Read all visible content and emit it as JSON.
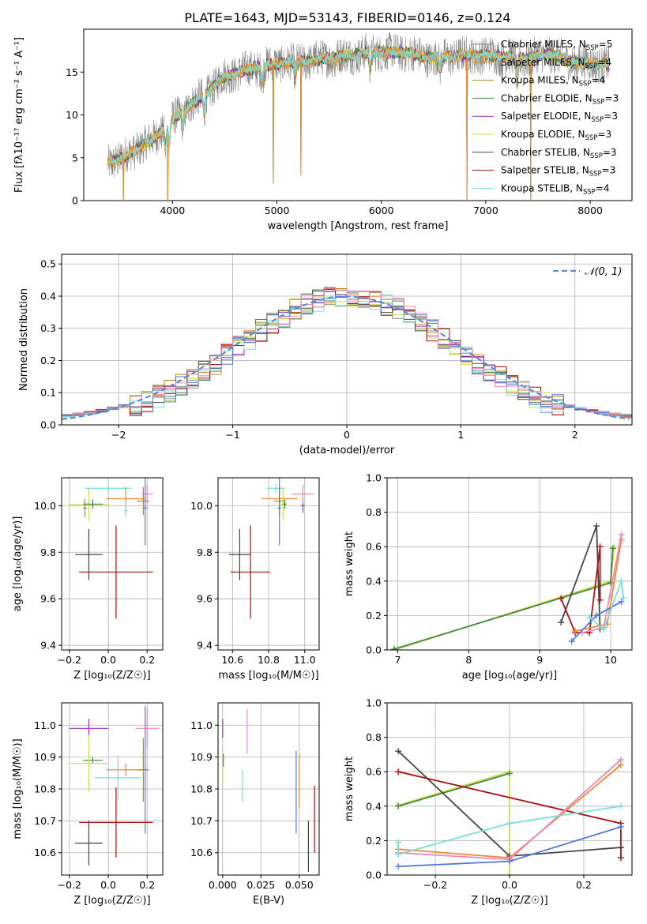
{
  "figure_title": "PLATE=1643, MJD=53143, FIBERID=0146, z=0.124",
  "colors": {
    "Chabrier MILES": "#888888",
    "Salpeter MILES": "#ee8833",
    "Kroupa MILES": "#aa8811",
    "Chabrier ELODIE": "#448844",
    "Salpeter ELODIE": "#9933bb",
    "Kroupa ELODIE": "#ccdd44",
    "Chabrier STELIB": "#444444",
    "Salpeter STELIB": "#aa1111",
    "Kroupa STELIB": "#77dddd",
    "extra_blue": "#5577dd",
    "extra_pink": "#ee88bb",
    "normal_curve": "#5b8bd6",
    "grid": "#b0b0b0"
  },
  "chart_data": [
    {
      "id": "spectrum",
      "type": "line",
      "title": "PLATE=1643, MJD=53143, FIBERID=0146, z=0.124",
      "xlabel": "wavelength [Angstrom, rest frame]",
      "ylabel": "Flux [fλ10⁻¹⁷ erg cm⁻² s⁻¹ A⁻¹]",
      "xlim": [
        3150,
        8400
      ],
      "ylim": [
        0,
        20
      ],
      "xticks": [
        "4000",
        "5000",
        "6000",
        "7000",
        "8000"
      ],
      "yticks": [
        "0",
        "5",
        "10",
        "15"
      ],
      "grid": false,
      "legend_position": "upper-right",
      "legend": [
        {
          "base": "Chabrier MILES, N",
          "sub": "SSP",
          "tail": "=5"
        },
        {
          "base": "Salpeter MILES, N",
          "sub": "SSP",
          "tail": "=4"
        },
        {
          "base": "Kroupa MILES, N",
          "sub": "SSP",
          "tail": "=4"
        },
        {
          "base": "Chabrier ELODIE, N",
          "sub": "SSP",
          "tail": "=3"
        },
        {
          "base": "Salpeter ELODIE, N",
          "sub": "SSP",
          "tail": "=3"
        },
        {
          "base": "Kroupa ELODIE, N",
          "sub": "SSP",
          "tail": "=3"
        },
        {
          "base": "Chabrier STELIB, N",
          "sub": "SSP",
          "tail": "=3"
        },
        {
          "base": "Salpeter STELIB, N",
          "sub": "SSP",
          "tail": "=3"
        },
        {
          "base": "Kroupa STELIB, N",
          "sub": "SSP",
          "tail": "=4"
        }
      ],
      "continuum": [
        [
          3380,
          4.5
        ],
        [
          3500,
          4.8
        ],
        [
          3650,
          6.0
        ],
        [
          3800,
          7.0
        ],
        [
          3950,
          8.8
        ],
        [
          4100,
          10.5
        ],
        [
          4300,
          12.3
        ],
        [
          4500,
          14.5
        ],
        [
          4700,
          15.2
        ],
        [
          5000,
          16.0
        ],
        [
          5300,
          16.3
        ],
        [
          5600,
          16.8
        ],
        [
          5900,
          17.3
        ],
        [
          6200,
          17.3
        ],
        [
          6500,
          16.6
        ],
        [
          6800,
          17.0
        ],
        [
          7100,
          16.9
        ],
        [
          7400,
          16.5
        ],
        [
          7600,
          17.2
        ],
        [
          7800,
          16.2
        ],
        [
          8200,
          15.8
        ]
      ],
      "absorption_features": [
        [
          3933,
          2.5
        ],
        [
          3968,
          2.5
        ],
        [
          4101,
          1.8
        ],
        [
          4304,
          2.2
        ],
        [
          4861,
          1.8
        ],
        [
          5175,
          2.0
        ],
        [
          5893,
          1.8
        ],
        [
          6563,
          1.5
        ],
        [
          7300,
          3.0
        ]
      ],
      "spikes": [
        [
          4965,
          2.0
        ],
        [
          5230,
          3.0
        ],
        [
          5555,
          14.5
        ],
        [
          6820,
          0
        ],
        [
          7430,
          0
        ],
        [
          3530,
          0
        ],
        [
          3955,
          0
        ]
      ]
    },
    {
      "id": "residuals",
      "type": "histogram",
      "xlabel": "(data-model)/error",
      "ylabel": "Normed distribution",
      "xlim": [
        -2.5,
        2.5
      ],
      "ylim": [
        0,
        0.53
      ],
      "xticks": [
        "−2",
        "−1",
        "0",
        "1",
        "2"
      ],
      "yticks": [
        "0.0",
        "0.1",
        "0.2",
        "0.3",
        "0.4",
        "0.5"
      ],
      "grid": true,
      "legend_position": "upper-right",
      "legend_label": "𝒩(0, 1)",
      "bin_width": 0.1
    },
    {
      "id": "age_vs_Z",
      "type": "scatter",
      "xlabel": "Z [log₁₀(Z/Z☉)]",
      "ylabel": "age  [log₁₀(age/yr)]",
      "xlim": [
        -0.24,
        0.28
      ],
      "ylim": [
        9.38,
        10.12
      ],
      "xticks": [
        [
          "−0.2",
          -0.2
        ],
        [
          "0.0",
          0.0
        ],
        [
          "0.2",
          0.2
        ]
      ],
      "yticks": [
        [
          "9.4",
          9.4
        ],
        [
          "9.6",
          9.6
        ],
        [
          "9.8",
          9.8
        ],
        [
          "10.0",
          10.0
        ]
      ],
      "grid": true,
      "points": [
        {
          "series": "Kroupa ELODIE",
          "x": -0.1,
          "y": 10.005,
          "xerr": 0.1,
          "yerr": 0.07
        },
        {
          "series": "Chabrier ELODIE",
          "x": -0.08,
          "y": 10.007,
          "xerr": 0.05,
          "yerr": 0.02
        },
        {
          "series": "Kroupa STELIB",
          "x": 0.0,
          "y": 10.075,
          "xerr": 0.12,
          "yerr": 0.02
        },
        {
          "series": "Salpeter MILES",
          "x": 0.09,
          "y": 10.03,
          "xerr": 0.1,
          "yerr": 0.05
        },
        {
          "series": "Kroupa MILES",
          "x": 0.18,
          "y": 10.02,
          "xerr": 0.03,
          "yerr": 0.06
        },
        {
          "series": "extra_pink",
          "x": 0.2,
          "y": 10.05,
          "xerr": 0.03,
          "yerr": 0.04
        },
        {
          "series": "extra_blue",
          "x": 0.19,
          "y": 9.99,
          "xerr": 0.01,
          "yerr": 0.16
        },
        {
          "series": "Chabrier MILES",
          "x": -0.12,
          "y": 9.99,
          "xerr": 0.01,
          "yerr": 0.04
        },
        {
          "series": "Kroupa STELIB",
          "x": 0.09,
          "y": 9.98,
          "xerr": 0.01,
          "yerr": 0.03
        },
        {
          "series": "Chabrier STELIB",
          "x": -0.1,
          "y": 9.79,
          "xerr": 0.07,
          "yerr": 0.11
        },
        {
          "series": "Salpeter STELIB",
          "x": 0.04,
          "y": 9.715,
          "xerr": 0.19,
          "yerr": 0.2
        }
      ]
    },
    {
      "id": "age_vs_mass",
      "type": "scatter",
      "xlabel": "mass [log₁₀(M/M☉)]",
      "ylabel": "",
      "xlim": [
        10.52,
        11.08
      ],
      "ylim": [
        9.38,
        10.12
      ],
      "xticks": [
        [
          "10.6",
          10.6
        ],
        [
          "10.8",
          10.8
        ],
        [
          "11.0",
          11.0
        ]
      ],
      "yticks": [
        [
          "9.4",
          9.4
        ],
        [
          "9.6",
          9.6
        ],
        [
          "9.8",
          9.8
        ],
        [
          "10.0",
          10.0
        ]
      ],
      "grid": true,
      "points": [
        {
          "series": "Chabrier STELIB",
          "x": 10.64,
          "y": 9.79,
          "xerr": 0.06,
          "yerr": 0.11
        },
        {
          "series": "Salpeter STELIB",
          "x": 10.7,
          "y": 9.715,
          "xerr": 0.11,
          "yerr": 0.2
        },
        {
          "series": "Salpeter MILES",
          "x": 10.86,
          "y": 10.03,
          "xerr": 0.1,
          "yerr": 0.05
        },
        {
          "series": "Kroupa STELIB",
          "x": 10.84,
          "y": 10.075,
          "xerr": 0.05,
          "yerr": 0.02
        },
        {
          "series": "Kroupa MILES",
          "x": 10.86,
          "y": 10.02,
          "xerr": 0.03,
          "yerr": 0.06
        },
        {
          "series": "Kroupa ELODIE",
          "x": 10.88,
          "y": 10.005,
          "xerr": 0.02,
          "yerr": 0.07
        },
        {
          "series": "extra_blue",
          "x": 10.86,
          "y": 9.99,
          "xerr": 0.01,
          "yerr": 0.16
        },
        {
          "series": "Chabrier ELODIE",
          "x": 10.89,
          "y": 10.007,
          "xerr": 0.01,
          "yerr": 0.02
        },
        {
          "series": "Salpeter ELODIE",
          "x": 10.99,
          "y": 10.0,
          "xerr": 0.01,
          "yerr": 0.03
        },
        {
          "series": "extra_pink",
          "x": 10.99,
          "y": 10.05,
          "xerr": 0.06,
          "yerr": 0.04
        }
      ]
    },
    {
      "id": "mass_weight_vs_age",
      "type": "line",
      "xlabel": "age  [log₁₀(age/yr)]",
      "ylabel": "mass weight",
      "xlim": [
        6.85,
        10.3
      ],
      "ylim": [
        0,
        1
      ],
      "xticks": [
        [
          "7",
          7
        ],
        [
          "8",
          8
        ],
        [
          "9",
          9
        ],
        [
          "10",
          10
        ]
      ],
      "yticks": [
        [
          "0.0",
          0
        ],
        [
          "0.2",
          0.2
        ],
        [
          "0.4",
          0.4
        ],
        [
          "0.6",
          0.6
        ],
        [
          "0.8",
          0.8
        ],
        [
          "1.0",
          1.0
        ]
      ],
      "grid": true,
      "series": [
        {
          "name": "Kroupa ELODIE",
          "points": [
            [
              6.95,
              0.0
            ],
            [
              10.0,
              0.4
            ],
            [
              10.05,
              0.6
            ]
          ]
        },
        {
          "name": "Chabrier ELODIE",
          "points": [
            [
              6.95,
              0.005
            ],
            [
              10.0,
              0.39
            ],
            [
              10.03,
              0.59
            ]
          ]
        },
        {
          "name": "Chabrier STELIB",
          "points": [
            [
              9.3,
              0.16
            ],
            [
              9.8,
              0.72
            ],
            [
              9.85,
              0.12
            ]
          ]
        },
        {
          "name": "Salpeter STELIB",
          "points": [
            [
              9.3,
              0.3
            ],
            [
              9.5,
              0.1
            ],
            [
              9.7,
              0.1
            ],
            [
              9.85,
              0.6
            ],
            [
              9.85,
              0.29
            ]
          ]
        },
        {
          "name": "Salpeter MILES",
          "points": [
            [
              9.5,
              0.11
            ],
            [
              9.95,
              0.15
            ],
            [
              10.15,
              0.64
            ]
          ]
        },
        {
          "name": "extra_pink",
          "points": [
            [
              9.6,
              0.1
            ],
            [
              9.9,
              0.13
            ],
            [
              10.15,
              0.67
            ]
          ]
        },
        {
          "name": "extra_blue",
          "points": [
            [
              9.45,
              0.05
            ],
            [
              9.8,
              0.2
            ],
            [
              10.15,
              0.28
            ]
          ]
        },
        {
          "name": "Kroupa STELIB",
          "points": [
            [
              9.7,
              0.19
            ],
            [
              9.9,
              0.12
            ],
            [
              10.15,
              0.4
            ],
            [
              10.18,
              0.3
            ]
          ]
        }
      ]
    },
    {
      "id": "mass_vs_Z",
      "type": "scatter",
      "xlabel": "Z [log₁₀(Z/Z☉)]",
      "ylabel": "mass [log₁₀(M/M☉)]",
      "xlim": [
        -0.24,
        0.28
      ],
      "ylim": [
        10.53,
        11.07
      ],
      "xticks": [
        [
          "−0.2",
          -0.2
        ],
        [
          "0.0",
          0.0
        ],
        [
          "0.2",
          0.2
        ]
      ],
      "yticks": [
        [
          "10.6",
          10.6
        ],
        [
          "10.7",
          10.7
        ],
        [
          "10.8",
          10.8
        ],
        [
          "10.9",
          10.9
        ],
        [
          "11.0",
          11.0
        ]
      ],
      "grid": true,
      "points": [
        {
          "series": "Salpeter ELODIE",
          "x": -0.1,
          "y": 10.99,
          "xerr": 0.1,
          "yerr": 0.03
        },
        {
          "series": "extra_pink",
          "x": 0.2,
          "y": 10.99,
          "xerr": 0.06,
          "yerr": 0.06
        },
        {
          "series": "Chabrier ELODIE",
          "x": -0.08,
          "y": 10.89,
          "xerr": 0.05,
          "yerr": 0.01
        },
        {
          "series": "Kroupa ELODIE",
          "x": -0.1,
          "y": 10.88,
          "xerr": 0.1,
          "yerr": 0.09
        },
        {
          "series": "Salpeter MILES",
          "x": 0.09,
          "y": 10.86,
          "xerr": 0.1,
          "yerr": 0.02
        },
        {
          "series": "Kroupa MILES",
          "x": 0.18,
          "y": 10.86,
          "xerr": 0.03,
          "yerr": 0.1
        },
        {
          "series": "extra_blue",
          "x": 0.19,
          "y": 10.86,
          "xerr": 0.01,
          "yerr": 0.2
        },
        {
          "series": "Kroupa STELIB",
          "x": 0.05,
          "y": 10.835,
          "xerr": 0.12,
          "yerr": 0.07
        },
        {
          "series": "Salpeter STELIB",
          "x": 0.04,
          "y": 10.695,
          "xerr": 0.19,
          "yerr": 0.11
        },
        {
          "series": "Chabrier STELIB",
          "x": -0.1,
          "y": 10.63,
          "xerr": 0.07,
          "yerr": 0.07
        }
      ]
    },
    {
      "id": "mass_vs_ebv",
      "type": "scatter",
      "xlabel": "E(B-V)",
      "ylabel": "",
      "xlim": [
        -0.003,
        0.063
      ],
      "ylim": [
        10.53,
        11.07
      ],
      "xticks": [
        [
          "0.000",
          0.0
        ],
        [
          "0.025",
          0.025
        ],
        [
          "0.050",
          0.05
        ]
      ],
      "yticks": [
        [
          "10.6",
          10.6
        ],
        [
          "10.7",
          10.7
        ],
        [
          "10.8",
          10.8
        ],
        [
          "10.9",
          10.9
        ],
        [
          "11.0",
          11.0
        ]
      ],
      "grid": true,
      "points": [
        {
          "series": "Salpeter ELODIE",
          "x": 0.0,
          "y": 10.99,
          "xerr": 0,
          "yerr": 0.03
        },
        {
          "series": "Kroupa ELODIE",
          "x": 0.0,
          "y": 10.86,
          "xerr": 0,
          "yerr": 0.07
        },
        {
          "series": "Chabrier ELODIE",
          "x": 0.0005,
          "y": 10.89,
          "xerr": 0,
          "yerr": 0.02
        },
        {
          "series": "extra_pink",
          "x": 0.016,
          "y": 10.98,
          "xerr": 0,
          "yerr": 0.07
        },
        {
          "series": "Kroupa STELIB",
          "x": 0.013,
          "y": 10.81,
          "xerr": 0,
          "yerr": 0.05
        },
        {
          "series": "extra_blue",
          "x": 0.048,
          "y": 10.79,
          "xerr": 0,
          "yerr": 0.13
        },
        {
          "series": "Salpeter MILES",
          "x": 0.05,
          "y": 10.825,
          "xerr": 0,
          "yerr": 0.085
        },
        {
          "series": "Chabrier STELIB",
          "x": 0.056,
          "y": 10.62,
          "xerr": 0,
          "yerr": 0.08
        },
        {
          "series": "Salpeter STELIB",
          "x": 0.06,
          "y": 10.705,
          "xerr": 0,
          "yerr": 0.105
        }
      ]
    },
    {
      "id": "mass_weight_vs_Z",
      "type": "line",
      "xlabel": "Z [log₁₀(Z/Z☉)]",
      "ylabel": "mass weight",
      "xlim": [
        -0.33,
        0.33
      ],
      "ylim": [
        0,
        1
      ],
      "xticks": [
        [
          "−0.2",
          -0.2
        ],
        [
          "0.0",
          0.0
        ],
        [
          "0.2",
          0.2
        ]
      ],
      "yticks": [
        [
          "0.0",
          0
        ],
        [
          "0.2",
          0.2
        ],
        [
          "0.4",
          0.4
        ],
        [
          "0.6",
          0.6
        ],
        [
          "0.8",
          0.8
        ],
        [
          "1.0",
          1.0
        ]
      ],
      "grid": true,
      "series": [
        {
          "name": "Kroupa ELODIE",
          "points": [
            [
              -0.3,
              0.405
            ],
            [
              0.0,
              0.6
            ],
            [
              0.0,
              0.0
            ]
          ]
        },
        {
          "name": "Chabrier ELODIE",
          "points": [
            [
              -0.3,
              0.4
            ],
            [
              0.0,
              0.59
            ]
          ]
        },
        {
          "name": "Chabrier STELIB",
          "points": [
            [
              -0.3,
              0.72
            ],
            [
              0.0,
              0.11
            ],
            [
              0.3,
              0.16
            ]
          ]
        },
        {
          "name": "Salpeter STELIB",
          "points": [
            [
              -0.3,
              0.6
            ],
            [
              0.3,
              0.3
            ],
            [
              0.3,
              0.1
            ]
          ]
        },
        {
          "name": "Salpeter MILES",
          "points": [
            [
              -0.3,
              0.15
            ],
            [
              0.0,
              0.1
            ],
            [
              0.3,
              0.64
            ]
          ]
        },
        {
          "name": "extra_pink",
          "points": [
            [
              -0.3,
              0.13
            ],
            [
              0.0,
              0.09
            ],
            [
              0.3,
              0.67
            ]
          ]
        },
        {
          "name": "extra_blue",
          "points": [
            [
              -0.3,
              0.05
            ],
            [
              0.0,
              0.08
            ],
            [
              0.3,
              0.28
            ]
          ]
        },
        {
          "name": "Kroupa STELIB",
          "points": [
            [
              -0.3,
              0.19
            ],
            [
              -0.3,
              0.12
            ],
            [
              0.0,
              0.3
            ],
            [
              0.3,
              0.4
            ]
          ]
        }
      ]
    }
  ]
}
